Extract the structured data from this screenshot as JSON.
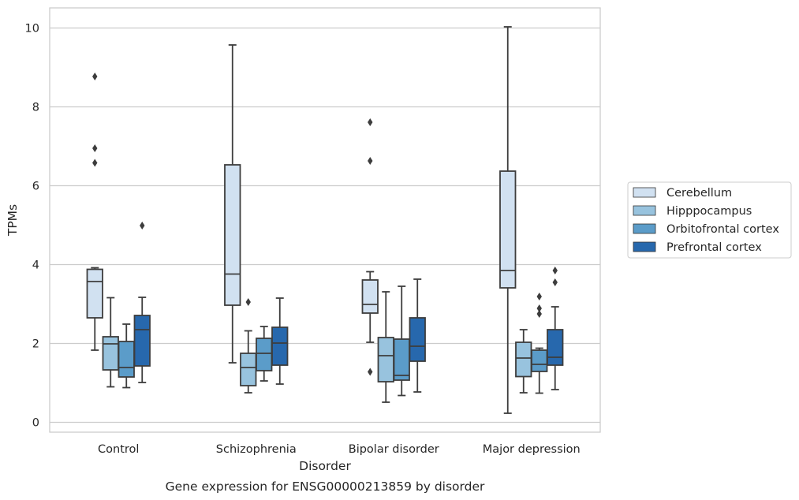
{
  "chart_data": {
    "type": "box",
    "caption": "Gene expression for ENSG00000213859 by disorder",
    "xlabel": "Disorder",
    "ylabel": "TPMs",
    "ylim": [
      -0.25,
      10.5
    ],
    "yticks": [
      0,
      2,
      4,
      6,
      8,
      10
    ],
    "grid": "horizontal",
    "legend_position": "right",
    "categories": [
      "Control",
      "Schizophrenia",
      "Bipolar disorder",
      "Major depression"
    ],
    "series": [
      {
        "name": "Cerebellum",
        "color": "#d1e1f1",
        "boxes": [
          {
            "q1": 2.65,
            "median": 3.57,
            "q3": 3.88,
            "whisker_low": 1.83,
            "whisker_high": 3.92,
            "outliers": [
              6.58,
              6.95,
              8.77
            ]
          },
          {
            "q1": 2.97,
            "median": 3.76,
            "q3": 6.53,
            "whisker_low": 1.51,
            "whisker_high": 9.57,
            "outliers": []
          },
          {
            "q1": 2.77,
            "median": 2.99,
            "q3": 3.61,
            "whisker_low": 2.03,
            "whisker_high": 3.82,
            "outliers": [
              1.28,
              6.63,
              7.61
            ]
          },
          {
            "q1": 3.41,
            "median": 3.85,
            "q3": 6.37,
            "whisker_low": 0.23,
            "whisker_high": 10.03,
            "outliers": []
          }
        ]
      },
      {
        "name": "Hipppocampus",
        "color": "#98c3de",
        "boxes": [
          {
            "q1": 1.33,
            "median": 1.99,
            "q3": 2.17,
            "whisker_low": 0.9,
            "whisker_high": 3.16,
            "outliers": []
          },
          {
            "q1": 0.93,
            "median": 1.39,
            "q3": 1.75,
            "whisker_low": 0.75,
            "whisker_high": 2.32,
            "outliers": [
              3.05
            ]
          },
          {
            "q1": 1.03,
            "median": 1.69,
            "q3": 2.15,
            "whisker_low": 0.51,
            "whisker_high": 3.31,
            "outliers": []
          },
          {
            "q1": 1.16,
            "median": 1.63,
            "q3": 2.03,
            "whisker_low": 0.75,
            "whisker_high": 2.35,
            "outliers": []
          }
        ]
      },
      {
        "name": "Orbitofrontal cortex",
        "color": "#5b9cc9",
        "boxes": [
          {
            "q1": 1.15,
            "median": 1.39,
            "q3": 2.05,
            "whisker_low": 0.88,
            "whisker_high": 2.49,
            "outliers": []
          },
          {
            "q1": 1.31,
            "median": 1.75,
            "q3": 2.13,
            "whisker_low": 1.05,
            "whisker_high": 2.43,
            "outliers": []
          },
          {
            "q1": 1.07,
            "median": 1.19,
            "q3": 2.11,
            "whisker_low": 0.68,
            "whisker_high": 3.45,
            "outliers": []
          },
          {
            "q1": 1.29,
            "median": 1.47,
            "q3": 1.83,
            "whisker_low": 0.74,
            "whisker_high": 1.88,
            "outliers": [
              2.75,
              2.89,
              3.19
            ]
          }
        ]
      },
      {
        "name": "Prefrontal cortex",
        "color": "#2768ad",
        "boxes": [
          {
            "q1": 1.43,
            "median": 2.35,
            "q3": 2.71,
            "whisker_low": 1.01,
            "whisker_high": 3.17,
            "outliers": [
              4.99
            ]
          },
          {
            "q1": 1.45,
            "median": 2.01,
            "q3": 2.41,
            "whisker_low": 0.97,
            "whisker_high": 3.15,
            "outliers": []
          },
          {
            "q1": 1.55,
            "median": 1.93,
            "q3": 2.65,
            "whisker_low": 0.77,
            "whisker_high": 3.63,
            "outliers": []
          },
          {
            "q1": 1.45,
            "median": 1.65,
            "q3": 2.35,
            "whisker_low": 0.83,
            "whisker_high": 2.93,
            "outliers": [
              3.55,
              3.85
            ]
          }
        ]
      }
    ]
  }
}
